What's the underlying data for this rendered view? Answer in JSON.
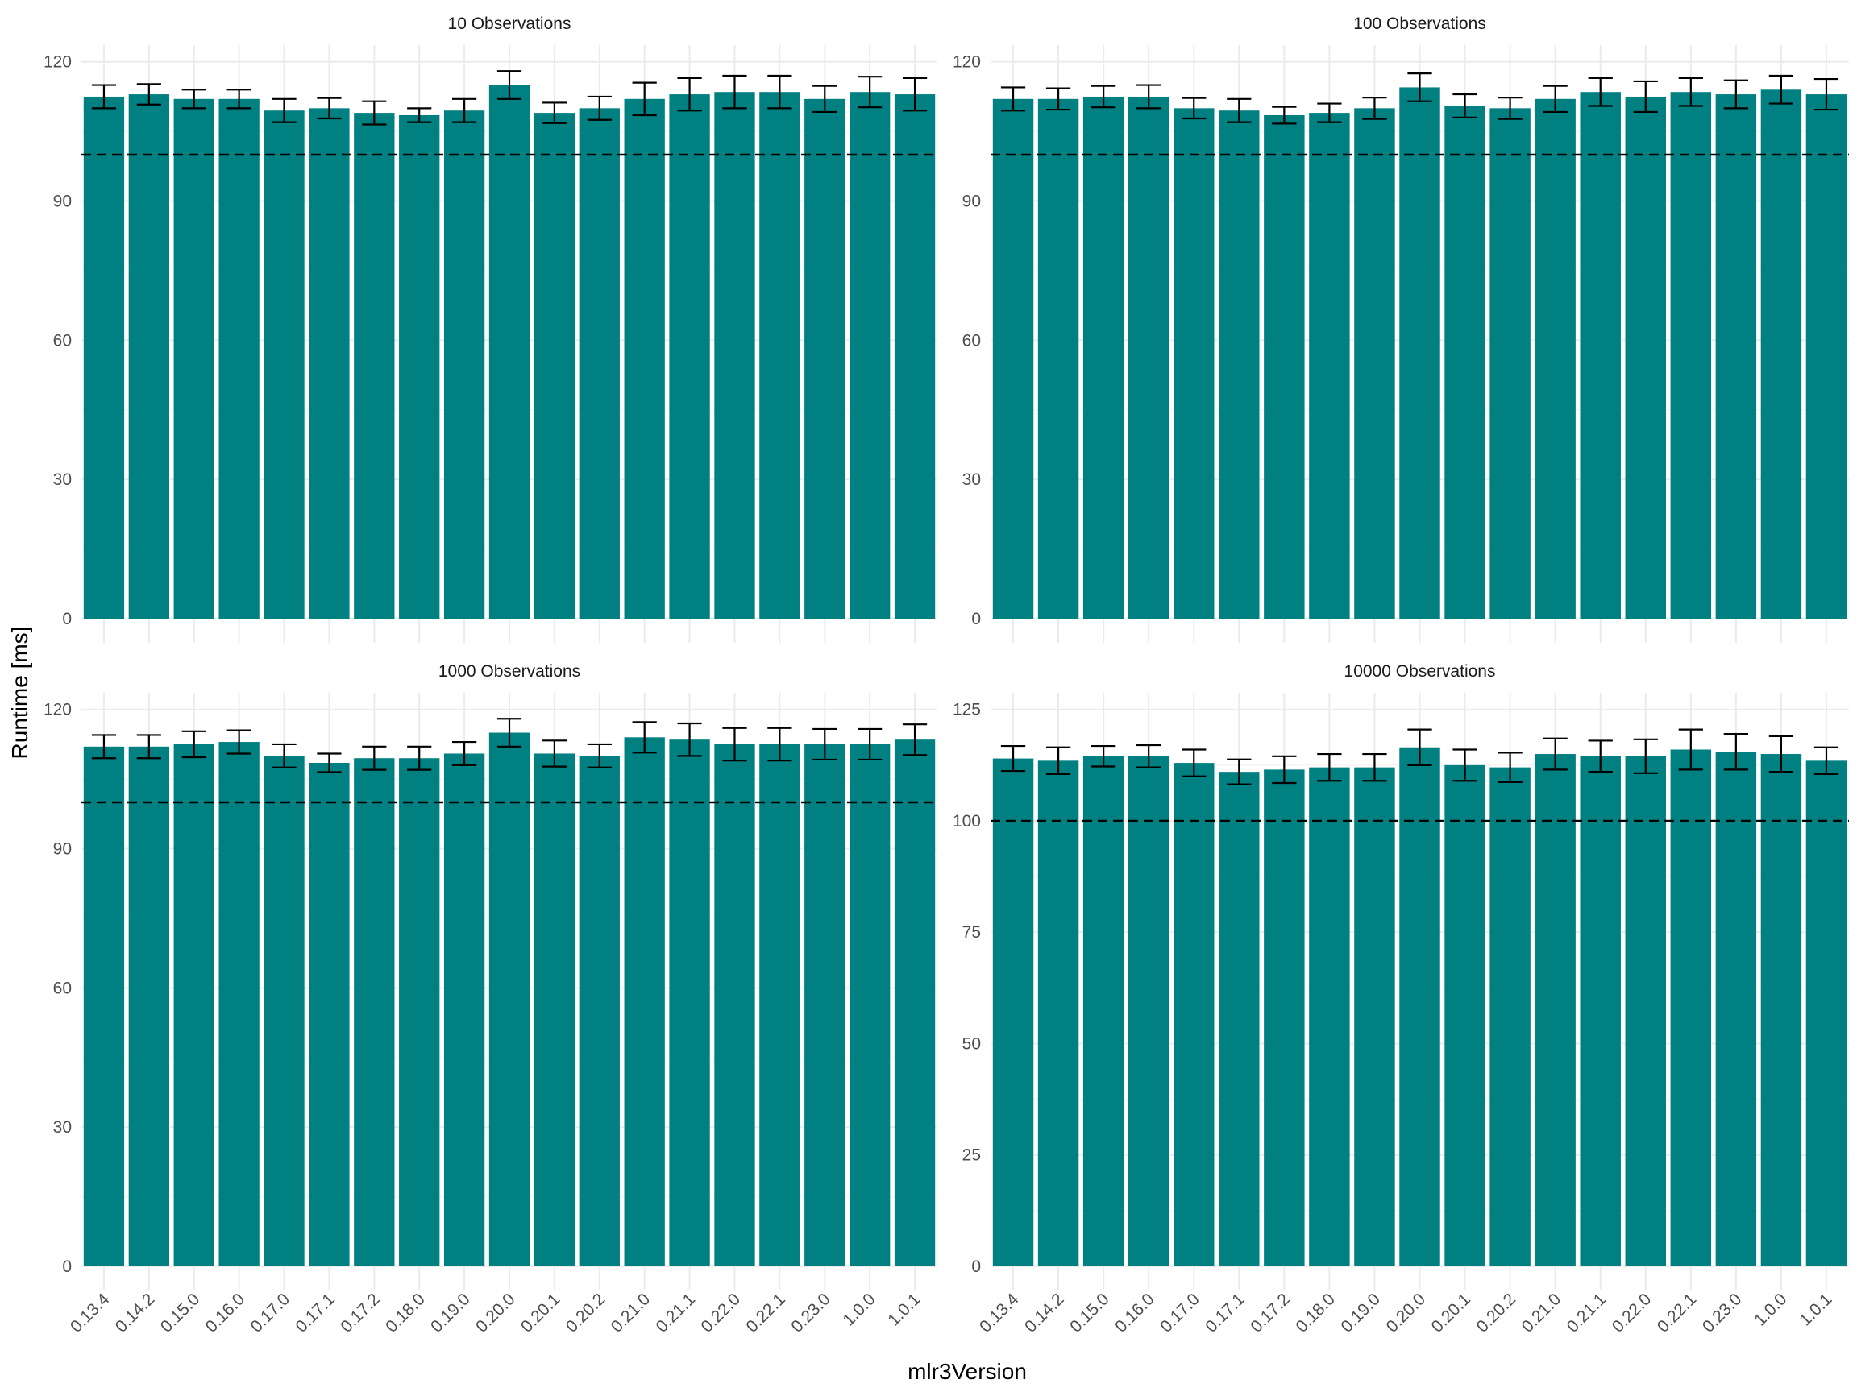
{
  "chart_data": {
    "type": "bar",
    "xlabel": "mlr3Version",
    "ylabel": "Runtime [ms]",
    "bar_color": "#008080",
    "error_bar_color": "#000000",
    "reference_line": {
      "value": 100,
      "style": "dashed",
      "color": "#000000"
    },
    "grid": true,
    "categories": [
      "0.13.4",
      "0.14.2",
      "0.15.0",
      "0.16.0",
      "0.17.0",
      "0.17.1",
      "0.17.2",
      "0.18.0",
      "0.19.0",
      "0.20.0",
      "0.20.1",
      "0.20.2",
      "0.21.0",
      "0.21.1",
      "0.22.0",
      "0.22.1",
      "0.23.0",
      "1.0.0",
      "1.0.1"
    ],
    "panels": [
      {
        "title": "10 Observations",
        "ylim": [
          0,
          120
        ],
        "yticks": [
          0,
          30,
          60,
          90,
          120
        ],
        "values": [
          112.5,
          113.0,
          112.0,
          112.0,
          109.5,
          110.0,
          109.0,
          108.5,
          109.5,
          115.0,
          109.0,
          110.0,
          112.0,
          113.0,
          113.5,
          113.5,
          112.0,
          113.5,
          113.0
        ],
        "errors": [
          2.5,
          2.2,
          2.0,
          2.0,
          2.5,
          2.2,
          2.5,
          1.5,
          2.5,
          3.0,
          2.2,
          2.5,
          3.5,
          3.5,
          3.5,
          3.5,
          2.8,
          3.3,
          3.5
        ]
      },
      {
        "title": "100 Observations",
        "ylim": [
          0,
          120
        ],
        "yticks": [
          0,
          30,
          60,
          90,
          120
        ],
        "values": [
          112.0,
          112.0,
          112.5,
          112.5,
          110.0,
          109.5,
          108.5,
          109.0,
          110.0,
          114.5,
          110.5,
          110.0,
          112.0,
          113.5,
          112.5,
          113.5,
          113.0,
          114.0,
          113.0
        ],
        "errors": [
          2.5,
          2.3,
          2.3,
          2.5,
          2.2,
          2.5,
          1.8,
          2.0,
          2.3,
          3.0,
          2.5,
          2.3,
          2.8,
          3.0,
          3.3,
          3.0,
          3.0,
          3.0,
          3.3
        ]
      },
      {
        "title": "1000 Observations",
        "ylim": [
          0,
          120
        ],
        "yticks": [
          0,
          30,
          60,
          90,
          120
        ],
        "values": [
          112.0,
          112.0,
          112.5,
          113.0,
          110.0,
          108.5,
          109.5,
          109.5,
          110.5,
          115.0,
          110.5,
          110.0,
          114.0,
          113.5,
          112.5,
          112.5,
          112.5,
          112.5,
          113.5
        ],
        "errors": [
          2.5,
          2.5,
          2.8,
          2.5,
          2.5,
          2.0,
          2.5,
          2.5,
          2.5,
          3.0,
          2.8,
          2.5,
          3.3,
          3.5,
          3.5,
          3.5,
          3.3,
          3.3,
          3.3
        ]
      },
      {
        "title": "10000 Observations",
        "ylim": [
          0,
          125
        ],
        "yticks": [
          0,
          25,
          50,
          75,
          100,
          125
        ],
        "values": [
          114.0,
          113.5,
          114.5,
          114.5,
          113.0,
          111.0,
          111.5,
          112.0,
          112.0,
          116.5,
          112.5,
          112.0,
          115.0,
          114.5,
          114.5,
          116.0,
          115.5,
          115.0,
          113.5
        ],
        "errors": [
          2.8,
          3.0,
          2.3,
          2.5,
          3.0,
          2.8,
          3.0,
          3.0,
          3.0,
          4.0,
          3.5,
          3.3,
          3.5,
          3.5,
          3.8,
          4.5,
          4.0,
          4.0,
          3.0
        ]
      }
    ]
  }
}
